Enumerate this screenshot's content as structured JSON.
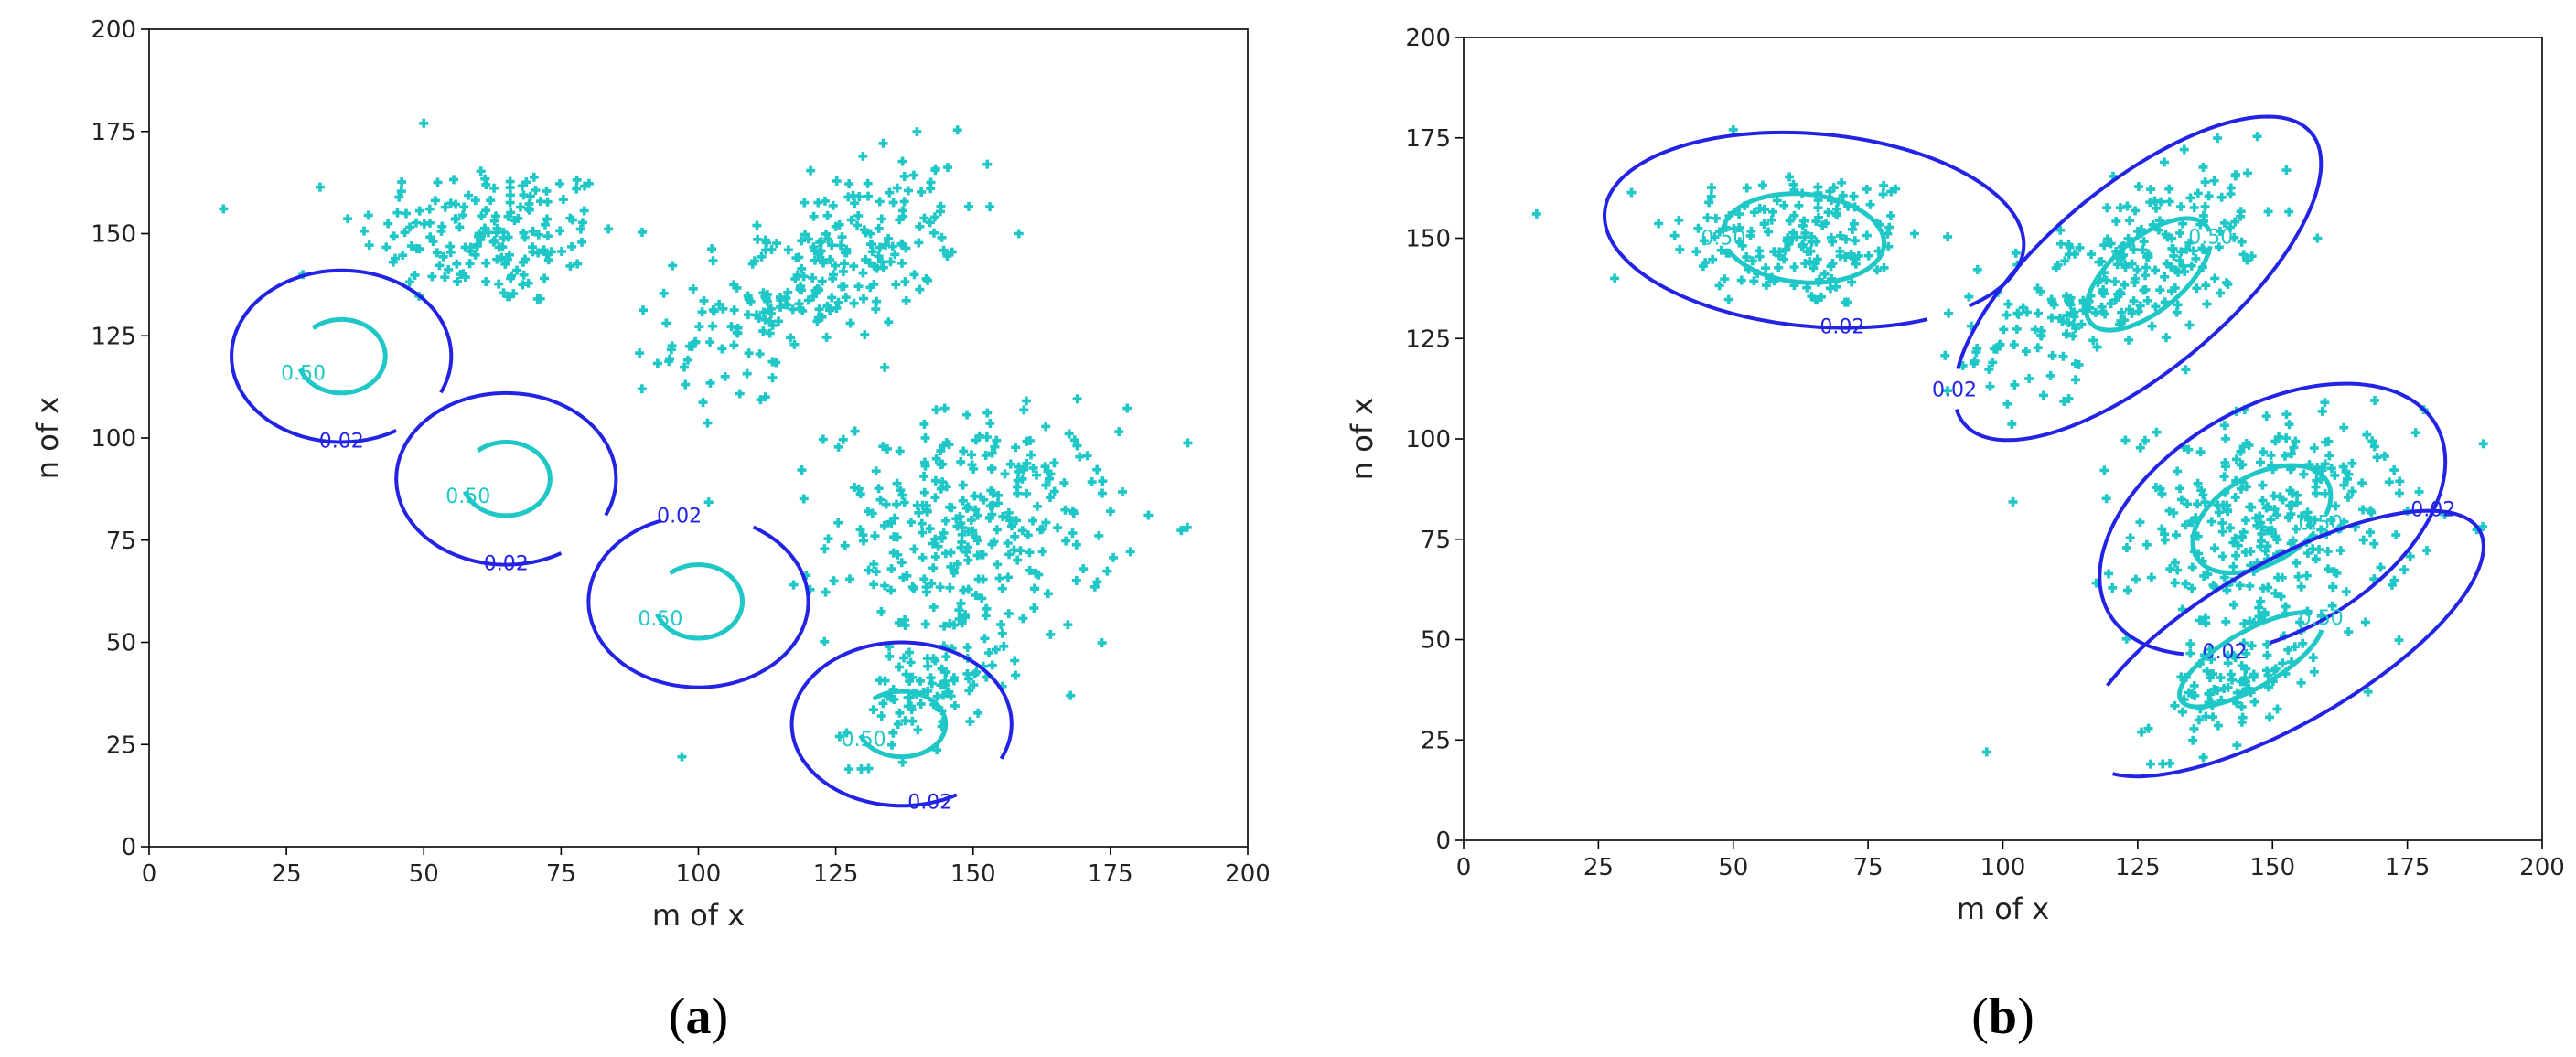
{
  "colors": {
    "points": "#1fc7c7",
    "contour_high": "#1fc7c7",
    "contour_low": "#2323e6",
    "axis": "#000000"
  },
  "chart_data": [
    {
      "type": "scatter",
      "panel": {
        "open": "(",
        "letter": "a",
        "close": ")"
      },
      "xlabel": "m of x",
      "ylabel": "n of x",
      "xlim": [
        0,
        200
      ],
      "ylim": [
        0,
        200
      ],
      "xticks": [
        "0",
        "25",
        "50",
        "75",
        "100",
        "125",
        "150",
        "175",
        "200"
      ],
      "yticks": [
        "0",
        "25",
        "50",
        "75",
        "100",
        "125",
        "150",
        "175",
        "200"
      ],
      "marker": "plus",
      "clusters": [
        {
          "center": [
            62,
            150
          ],
          "spread": [
            12,
            9
          ],
          "corr": -0.05,
          "count": 170
        },
        {
          "center": [
            122,
            140
          ],
          "spread": [
            13,
            13
          ],
          "corr": 0.6,
          "count": 260
        },
        {
          "center": [
            150,
            78
          ],
          "spread": [
            13,
            14
          ],
          "corr": 0.05,
          "count": 300
        },
        {
          "center": [
            142,
            38
          ],
          "spread": [
            7,
            7
          ],
          "corr": 0.5,
          "count": 90
        }
      ],
      "outliers": [
        [
          97,
          22
        ],
        [
          28,
          140
        ],
        [
          50,
          177
        ]
      ],
      "contours": [
        {
          "level": "0.02",
          "center": [
            35,
            120
          ],
          "rx": 20,
          "ry": 21,
          "angle": 0,
          "gap_start": 300,
          "gap_end": 335,
          "label_angle": 270
        },
        {
          "level": "0.50",
          "center": [
            35,
            120
          ],
          "rx": 8,
          "ry": 9,
          "angle": 0,
          "gap_start": 130,
          "gap_end": 200,
          "label_angle": 210
        },
        {
          "level": "0.02",
          "center": [
            65,
            90
          ],
          "rx": 20,
          "ry": 21,
          "angle": 0,
          "gap_start": 300,
          "gap_end": 335,
          "label_angle": 270
        },
        {
          "level": "0.50",
          "center": [
            65,
            90
          ],
          "rx": 8,
          "ry": 9,
          "angle": 0,
          "gap_start": 130,
          "gap_end": 200,
          "label_angle": 210
        },
        {
          "level": "0.02",
          "center": [
            100,
            60
          ],
          "rx": 20,
          "ry": 21,
          "angle": 0,
          "gap_start": 60,
          "gap_end": 110,
          "label_angle": 100
        },
        {
          "level": "0.50",
          "center": [
            100,
            60
          ],
          "rx": 8,
          "ry": 9,
          "angle": 0,
          "gap_start": 130,
          "gap_end": 200,
          "label_angle": 210
        },
        {
          "level": "0.02",
          "center": [
            137,
            30
          ],
          "rx": 20,
          "ry": 20,
          "angle": 0,
          "gap_start": 300,
          "gap_end": 335,
          "label_angle": 285
        },
        {
          "level": "0.50",
          "center": [
            137,
            30
          ],
          "rx": 8,
          "ry": 8,
          "angle": 0,
          "gap_start": 130,
          "gap_end": 200,
          "label_angle": 210
        }
      ]
    },
    {
      "type": "scatter",
      "panel": {
        "open": "(",
        "letter": "b",
        "close": ")"
      },
      "xlabel": "m of x",
      "ylabel": "n of x",
      "xlim": [
        0,
        200
      ],
      "ylim": [
        0,
        200
      ],
      "xticks": [
        "0",
        "25",
        "50",
        "75",
        "100",
        "125",
        "150",
        "175",
        "200"
      ],
      "yticks": [
        "0",
        "25",
        "50",
        "75",
        "100",
        "125",
        "150",
        "175",
        "200"
      ],
      "marker": "plus",
      "clusters": [
        {
          "center": [
            62,
            150
          ],
          "spread": [
            12,
            9
          ],
          "corr": -0.05,
          "count": 170
        },
        {
          "center": [
            122,
            140
          ],
          "spread": [
            13,
            13
          ],
          "corr": 0.6,
          "count": 260
        },
        {
          "center": [
            150,
            78
          ],
          "spread": [
            13,
            14
          ],
          "corr": 0.05,
          "count": 300
        },
        {
          "center": [
            142,
            38
          ],
          "spread": [
            7,
            7
          ],
          "corr": 0.5,
          "count": 90
        }
      ],
      "outliers": [
        [
          97,
          22
        ],
        [
          28,
          140
        ],
        [
          50,
          177
        ]
      ],
      "contours": [
        {
          "level": "0.02",
          "center": [
            65,
            152
          ],
          "rx": 39,
          "ry": 24,
          "angle": -5,
          "gap_start": 305,
          "gap_end": 320,
          "label_angle": 280
        },
        {
          "level": "0.50",
          "center": [
            63,
            150
          ],
          "rx": 15,
          "ry": 11,
          "angle": -5,
          "gap_start": 180,
          "gap_end": 205,
          "label_angle": 190
        },
        {
          "level": "0.02",
          "center": [
            125,
            140
          ],
          "rx": 42,
          "ry": 23,
          "angle": 40,
          "gap_start": 150,
          "gap_end": 170,
          "label_angle": 160
        },
        {
          "level": "0.50",
          "center": [
            127,
            141
          ],
          "rx": 14,
          "ry": 9,
          "angle": 40,
          "gap_start": 330,
          "gap_end": 350,
          "label_angle": 340
        },
        {
          "level": "0.02",
          "center": [
            150,
            80
          ],
          "rx": 35,
          "ry": 28,
          "angle": 30,
          "gap_start": 220,
          "gap_end": 250,
          "label_angle": 235
        },
        {
          "level": "0.50",
          "center": [
            148,
            80
          ],
          "rx": 14,
          "ry": 11,
          "angle": 30,
          "gap_start": 300,
          "gap_end": 320,
          "label_angle": 310
        },
        {
          "level": "0.02",
          "center": [
            152,
            49
          ],
          "rx": 42,
          "ry": 20,
          "angle": 30,
          "gap_start": 140,
          "gap_end": 200,
          "label_angle": 30
        },
        {
          "level": "0.50",
          "center": [
            146,
            45
          ],
          "rx": 15,
          "ry": 7,
          "angle": 30,
          "gap_start": 340,
          "gap_end": 20,
          "label_angle": 0
        }
      ]
    }
  ]
}
